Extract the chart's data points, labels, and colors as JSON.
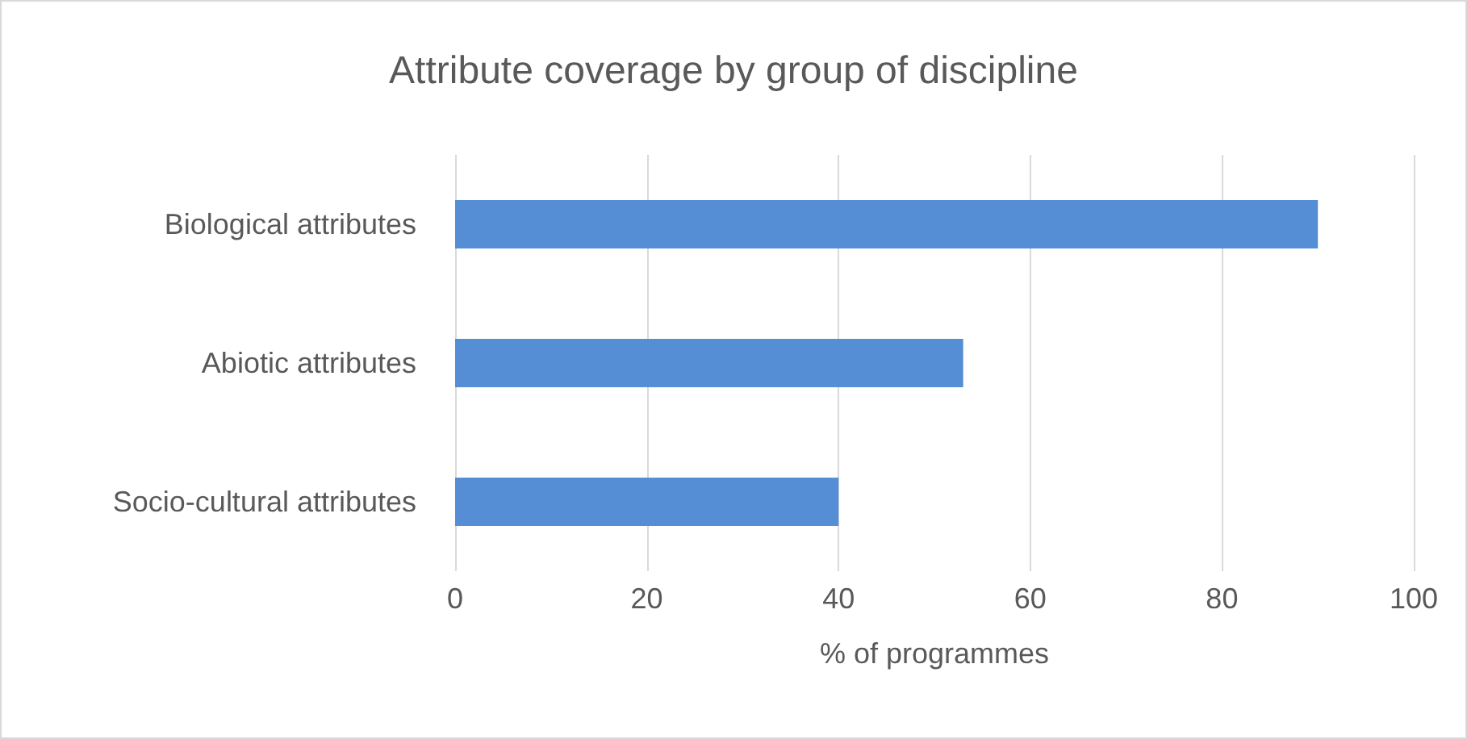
{
  "chart_data": {
    "type": "bar",
    "orientation": "horizontal",
    "title": "Attribute coverage by group of discipline",
    "xlabel": "% of programmes",
    "categories": [
      "Biological attributes",
      "Abiotic attributes",
      "Socio-cultural attributes"
    ],
    "values": [
      90,
      53,
      40
    ],
    "color": "#558ed5",
    "xlim": [
      0,
      100
    ],
    "xticks": [
      0,
      20,
      40,
      60,
      80,
      100
    ],
    "grid": "x"
  }
}
